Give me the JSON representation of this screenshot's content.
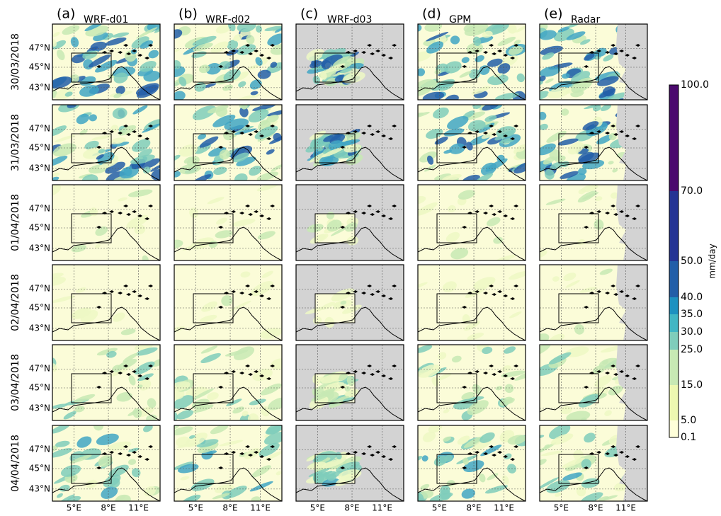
{
  "columns": [
    {
      "letter": "(a)",
      "name": "WRF-d01"
    },
    {
      "letter": "(b)",
      "name": "WRF-d02"
    },
    {
      "letter": "(c)",
      "name": "WRF-d03"
    },
    {
      "letter": "(d)",
      "name": "GPM"
    },
    {
      "letter": "(e)",
      "name": "Radar"
    }
  ],
  "rows": [
    "30/03/2018",
    "31/03/2018",
    "01/04/2018",
    "02/04/2018",
    "03/04/2018",
    "04/04/2018"
  ],
  "y_ticks": [
    "47°N",
    "45°N",
    "43°N"
  ],
  "x_ticks": [
    "5°E",
    "8°E",
    "11°E"
  ],
  "colorbar": {
    "label": "mm/day",
    "ticks": [
      "100.0",
      "70.0",
      "50.0",
      "40.0",
      "35.0",
      "30.0",
      "25.0",
      "15.0",
      "5.0",
      "0.1"
    ]
  }
}
